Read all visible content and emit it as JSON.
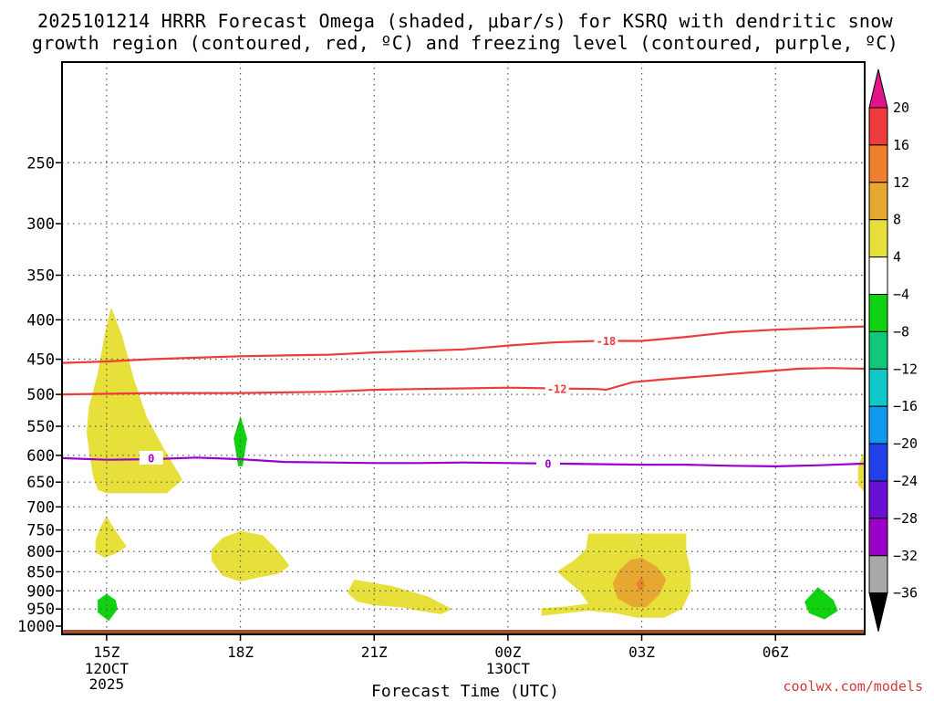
{
  "chart_data": {
    "type": "contour",
    "title_line1": "2025101214 HRRR Forecast Omega (shaded, μbar/s) for KSRQ with dendritic snow",
    "title_line2": "growth region (contoured, red, ºC) and freezing level (contoured, purple, ºC)",
    "xlabel": "Forecast Time (UTC)",
    "x_ticks": [
      {
        "hour": 1,
        "label": "15Z",
        "sub1": "12OCT",
        "sub2": "2025"
      },
      {
        "hour": 4,
        "label": "18Z",
        "sub1": "",
        "sub2": ""
      },
      {
        "hour": 7,
        "label": "21Z",
        "sub1": "",
        "sub2": ""
      },
      {
        "hour": 10,
        "label": "00Z",
        "sub1": "13OCT",
        "sub2": ""
      },
      {
        "hour": 13,
        "label": "03Z",
        "sub1": "",
        "sub2": ""
      },
      {
        "hour": 16,
        "label": "06Z",
        "sub1": "",
        "sub2": ""
      }
    ],
    "xlim": [
      0.0,
      18.0
    ],
    "ylim": [
      1025,
      185
    ],
    "y_ticks": [
      250,
      300,
      350,
      400,
      450,
      500,
      550,
      600,
      650,
      700,
      750,
      800,
      850,
      900,
      950,
      1000
    ],
    "y_ticks_gridded": [
      250,
      300,
      350,
      400,
      450,
      500,
      550,
      600,
      650,
      700,
      750,
      800,
      850,
      900,
      950
    ],
    "contours": [
      {
        "label": "-18",
        "color": "#ee3b3b",
        "points": [
          [
            0.0,
            455
          ],
          [
            1,
            453
          ],
          [
            2,
            450
          ],
          [
            3,
            448
          ],
          [
            4,
            446
          ],
          [
            5,
            445
          ],
          [
            6,
            444
          ],
          [
            7,
            441
          ],
          [
            8,
            439
          ],
          [
            9,
            437
          ],
          [
            10,
            432
          ],
          [
            11,
            428
          ],
          [
            12,
            426
          ],
          [
            13,
            426
          ],
          [
            14,
            421
          ],
          [
            15,
            415
          ],
          [
            16,
            412
          ],
          [
            17,
            410
          ],
          [
            18,
            408
          ]
        ],
        "label_at": [
          12.2,
          426
        ]
      },
      {
        "label": "-12",
        "color": "#ee3b3b",
        "points": [
          [
            0.0,
            500
          ],
          [
            1,
            499
          ],
          [
            2,
            498
          ],
          [
            3,
            498
          ],
          [
            4,
            498
          ],
          [
            5,
            497
          ],
          [
            6,
            496
          ],
          [
            7,
            493
          ],
          [
            8,
            492
          ],
          [
            9,
            491
          ],
          [
            10,
            490
          ],
          [
            11,
            491
          ],
          [
            12,
            492
          ],
          [
            12.2,
            493
          ],
          [
            12.8,
            482
          ],
          [
            13.5,
            478
          ],
          [
            14.5,
            473
          ],
          [
            15.5,
            468
          ],
          [
            16.5,
            463
          ],
          [
            17.2,
            462
          ],
          [
            18,
            463
          ]
        ],
        "label_at": [
          11.1,
          492
        ]
      },
      {
        "label": "0",
        "color": "#9900cc",
        "points": [
          [
            0.0,
            605
          ],
          [
            1,
            608
          ],
          [
            2,
            607
          ],
          [
            3,
            604
          ],
          [
            4,
            607
          ],
          [
            5,
            612
          ],
          [
            6,
            613
          ],
          [
            7,
            614
          ],
          [
            8,
            614
          ],
          [
            9,
            613
          ],
          [
            10,
            614
          ],
          [
            11,
            615
          ],
          [
            12,
            616
          ],
          [
            13,
            617
          ],
          [
            14,
            617
          ],
          [
            15,
            619
          ],
          [
            16,
            620
          ],
          [
            17,
            618
          ],
          [
            18,
            615
          ]
        ],
        "label_at": [
          2.0,
          605
        ],
        "label_at2": [
          10.9,
          615
        ]
      }
    ],
    "shaded_regions": [
      {
        "level": "4 to 8",
        "color": "#e8e03a",
        "points": [
          [
            1.1,
            385
          ],
          [
            1.35,
            420
          ],
          [
            1.6,
            475
          ],
          [
            1.9,
            535
          ],
          [
            2.3,
            590
          ],
          [
            2.7,
            645
          ],
          [
            2.35,
            672
          ],
          [
            1.85,
            672
          ],
          [
            1.35,
            672
          ],
          [
            1.0,
            672
          ],
          [
            0.8,
            665
          ],
          [
            0.7,
            640
          ],
          [
            0.62,
            600
          ],
          [
            0.55,
            560
          ],
          [
            0.6,
            520
          ],
          [
            0.8,
            470
          ],
          [
            0.95,
            420
          ]
        ]
      },
      {
        "level": "4 to 8",
        "color": "#e8e03a",
        "points": [
          [
            1.0,
            720
          ],
          [
            1.2,
            752
          ],
          [
            1.45,
            788
          ],
          [
            1.2,
            805
          ],
          [
            0.95,
            815
          ],
          [
            0.75,
            802
          ],
          [
            0.75,
            775
          ],
          [
            0.85,
            745
          ]
        ]
      },
      {
        "level": "4 to 8",
        "color": "#e8e03a",
        "points": [
          [
            4.0,
            752
          ],
          [
            4.5,
            762
          ],
          [
            4.8,
            792
          ],
          [
            5.1,
            835
          ],
          [
            4.85,
            855
          ],
          [
            4.4,
            865
          ],
          [
            4.0,
            875
          ],
          [
            3.6,
            860
          ],
          [
            3.35,
            822
          ],
          [
            3.35,
            795
          ],
          [
            3.6,
            768
          ]
        ]
      },
      {
        "level": "4 to 8",
        "color": "#e8e03a",
        "points": [
          [
            6.55,
            870
          ],
          [
            7.4,
            887
          ],
          [
            8.2,
            915
          ],
          [
            8.75,
            950
          ],
          [
            8.5,
            965
          ],
          [
            8.0,
            955
          ],
          [
            7.6,
            945
          ],
          [
            7.0,
            940
          ],
          [
            6.6,
            928
          ],
          [
            6.4,
            905
          ]
        ]
      },
      {
        "level": "4 to 8",
        "color": "#e8e03a",
        "points": [
          [
            11.8,
            758
          ],
          [
            14.0,
            758
          ],
          [
            14.0,
            800
          ],
          [
            14.1,
            850
          ],
          [
            14.1,
            900
          ],
          [
            13.9,
            950
          ],
          [
            13.5,
            975
          ],
          [
            12.9,
            975
          ],
          [
            12.4,
            962
          ],
          [
            11.8,
            955
          ],
          [
            11.3,
            962
          ],
          [
            10.75,
            970
          ],
          [
            10.75,
            948
          ],
          [
            11.3,
            943
          ],
          [
            11.8,
            935
          ],
          [
            11.6,
            900
          ],
          [
            11.1,
            850
          ],
          [
            11.5,
            820
          ],
          [
            11.75,
            795
          ]
        ]
      },
      {
        "level": "4 to 8",
        "color": "#e8e03a",
        "points": [
          [
            18.0,
            590
          ],
          [
            18.0,
            670
          ],
          [
            17.85,
            655
          ],
          [
            17.85,
            620
          ]
        ]
      },
      {
        "level": "8 to 12",
        "color": "#e6a830",
        "points": [
          [
            13.0,
            815
          ],
          [
            13.35,
            838
          ],
          [
            13.55,
            870
          ],
          [
            13.4,
            910
          ],
          [
            13.1,
            945
          ],
          [
            12.8,
            945
          ],
          [
            12.45,
            920
          ],
          [
            12.35,
            880
          ],
          [
            12.5,
            845
          ],
          [
            12.75,
            820
          ]
        ]
      },
      {
        "level": "12 to 16",
        "color": "#ee8030",
        "points": [
          [
            13.0,
            862
          ],
          [
            13.07,
            885
          ],
          [
            12.95,
            902
          ],
          [
            12.88,
            880
          ]
        ]
      },
      {
        "level": "-8 to -4",
        "color": "#11d211",
        "points": [
          [
            4.0,
            533
          ],
          [
            4.15,
            570
          ],
          [
            4.05,
            620
          ],
          [
            3.95,
            620
          ],
          [
            3.85,
            570
          ]
        ]
      },
      {
        "level": "-8 to -4",
        "color": "#11d211",
        "points": [
          [
            1.0,
            908
          ],
          [
            1.2,
            925
          ],
          [
            1.25,
            950
          ],
          [
            1.05,
            985
          ],
          [
            0.8,
            960
          ],
          [
            0.8,
            925
          ]
        ]
      },
      {
        "level": "-8 to -4",
        "color": "#11d211",
        "points": [
          [
            16.95,
            890
          ],
          [
            17.3,
            925
          ],
          [
            17.4,
            955
          ],
          [
            17.1,
            980
          ],
          [
            16.75,
            962
          ],
          [
            16.65,
            930
          ]
        ]
      }
    ],
    "ground_color": "#a0522d",
    "colorbar": {
      "top_triangle_color": "#e0158a",
      "bottom_triangle_color": "#000000",
      "segments": [
        {
          "color": "#ee3b3b",
          "label": "20"
        },
        {
          "color": "#ee8030",
          "label": "16"
        },
        {
          "color": "#e6a830",
          "label": "12"
        },
        {
          "color": "#e8e03a",
          "label": "8"
        },
        {
          "color": "#ffffff",
          "label": "4"
        },
        {
          "color": "#11d211",
          "label": "−4"
        },
        {
          "color": "#11c87a",
          "label": "−8"
        },
        {
          "color": "#11c8c8",
          "label": "−12"
        },
        {
          "color": "#1199ee",
          "label": "−16"
        },
        {
          "color": "#2040e8",
          "label": "−20"
        },
        {
          "color": "#6a10d2",
          "label": "−24"
        },
        {
          "color": "#9a00c8",
          "label": "−28"
        },
        {
          "color": "#a8a8a8",
          "label": "−32"
        }
      ],
      "bottom_label": "−36"
    },
    "credit": "coolwx.com/models"
  }
}
